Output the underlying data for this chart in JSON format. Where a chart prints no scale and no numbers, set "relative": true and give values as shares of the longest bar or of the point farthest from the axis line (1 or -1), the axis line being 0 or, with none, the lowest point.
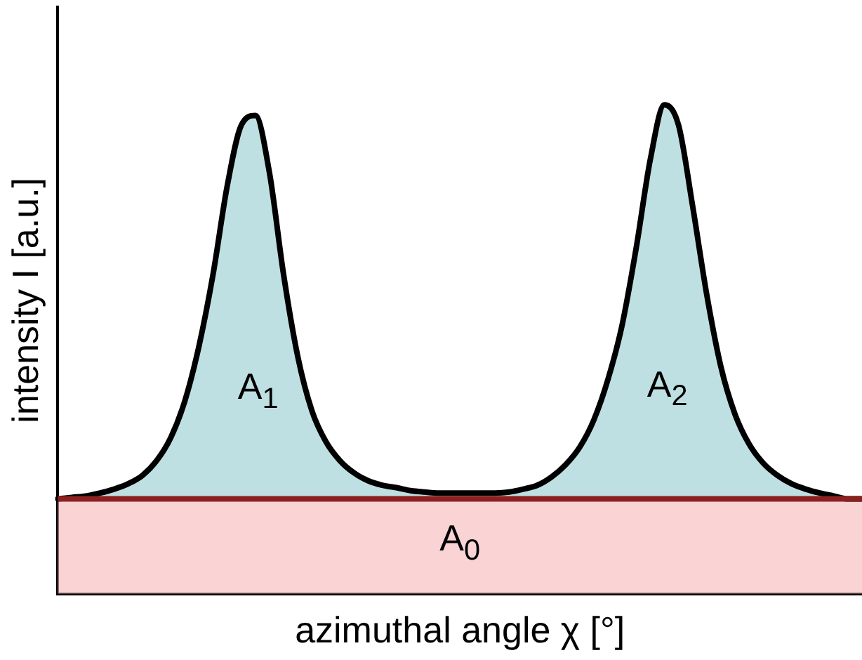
{
  "chart_data": {
    "type": "area",
    "relative": true,
    "xlabel": "azimuthal angle χ [°]",
    "ylabel": "intensity I [a.u.]",
    "categories": [
      null,
      null,
      null,
      null,
      null,
      null,
      null,
      null,
      null,
      null,
      null,
      null,
      null,
      null,
      null,
      null,
      null,
      null,
      null,
      null,
      null,
      null,
      null,
      null,
      null,
      null,
      null,
      null,
      null,
      null,
      null,
      null,
      null,
      null,
      null,
      null,
      null,
      null,
      null,
      null,
      null,
      null,
      null,
      null,
      null,
      null,
      null,
      null,
      null,
      null,
      null,
      null,
      null,
      null,
      null,
      null,
      null,
      null
    ],
    "series": [
      {
        "color": "#a9d6da",
        "values": [
          0.194,
          0.197,
          0.2,
          0.206,
          0.214,
          0.225,
          0.242,
          0.272,
          0.319,
          0.394,
          0.506,
          0.653,
          0.833,
          0.958,
          0.978,
          0.861,
          0.653,
          0.486,
          0.375,
          0.311,
          0.272,
          0.247,
          0.231,
          0.222,
          0.217,
          0.211,
          0.208,
          0.206,
          0.206,
          0.206,
          0.206,
          0.206,
          0.208,
          0.214,
          0.222,
          0.239,
          0.264,
          0.3,
          0.356,
          0.439,
          0.55,
          0.708,
          0.889,
          1,
          0.958,
          0.792,
          0.611,
          0.464,
          0.367,
          0.306,
          0.267,
          0.242,
          0.225,
          0.214,
          0.206,
          0.2,
          0.194,
          0.194
        ]
      }
    ],
    "ref_lines": [
      {
        "axis": "y",
        "value": 0.194,
        "color": "#8b2020"
      }
    ],
    "bands": [
      {
        "axis": "y",
        "from": 0,
        "to": 0.194,
        "label": "A$_{0}$",
        "color": "#f6b8b8"
      }
    ],
    "annotations": [
      "A$_{1}$",
      "A$_{2}$"
    ],
    "grid": false,
    "legend": false,
    "marker": "none",
    "line_style": "solid",
    "tick_labels": false
  }
}
